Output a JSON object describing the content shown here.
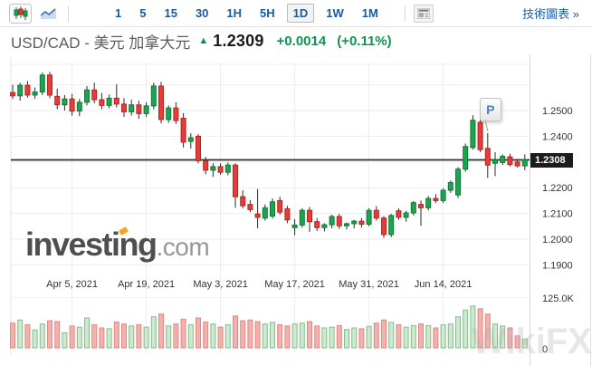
{
  "toolbar": {
    "chart_types": [
      {
        "name": "candlestick-chart",
        "selected": true
      },
      {
        "name": "area-line-chart",
        "selected": false
      }
    ],
    "timeframes": [
      "1",
      "5",
      "15",
      "30",
      "1H",
      "5H",
      "1D",
      "1W",
      "1M"
    ],
    "selected_timeframe": "1D",
    "news_panel_icon": "layout-panel",
    "technical_link": "技術圖表 »"
  },
  "header": {
    "pair": "USD/CAD",
    "separator": "-",
    "name": "美元 加拿大元",
    "direction_arrow": "▲",
    "price": "1.2309",
    "change": "+0.0014",
    "change_percent": "(+0.11%)"
  },
  "watermark": {
    "brand": "investing",
    "suffix": ".com",
    "corner_brand": "WikiFX"
  },
  "chart_data": {
    "type": "candlestick",
    "title": "USD/CAD daily candlesticks with volume",
    "legend_position": "none",
    "grid": true,
    "x_axis": {
      "tick_labels": [
        "Apr 5, 2021",
        "Apr 19, 2021",
        "May 3, 2021",
        "May 17, 2021",
        "May 31, 2021",
        "Jun 14, 2021"
      ],
      "tick_candle_indices": [
        8,
        18,
        28,
        38,
        48,
        58
      ]
    },
    "y_axis": {
      "side": "right",
      "ticks": [
        {
          "label": "1.2500",
          "value": 1.25
        },
        {
          "label": "1.2400",
          "value": 1.24
        },
        {
          "label": "1.2200",
          "value": 1.22
        },
        {
          "label": "1.2100",
          "value": 1.21
        },
        {
          "label": "1.2000",
          "value": 1.2
        },
        {
          "label": "1.1900",
          "value": 1.19
        }
      ],
      "gridline_values": [
        1.26,
        1.25,
        1.24,
        1.23,
        1.22,
        1.21,
        1.2,
        1.19
      ],
      "range": [
        1.187,
        1.268
      ]
    },
    "volume_axis": {
      "top_label": "125.0K",
      "top_value_k": 125,
      "zero_label": "0"
    },
    "price_line": {
      "value": 1.2308,
      "badge_label": "1.2308"
    },
    "marker": {
      "label": "P",
      "candle_index": 64
    },
    "colors": {
      "up": "#1fa44e",
      "up_border": "#0c7a37",
      "down": "#e43d3a",
      "down_border": "#b5241f",
      "wick": "#2b2b2b",
      "vol_up": "#cde9cf",
      "vol_up_border": "#85bd8a",
      "vol_down": "#f2b1ac",
      "vol_down_border": "#df8a84",
      "price_line": "#2f2f2f",
      "grid": "#ededed",
      "axis_text": "#333333",
      "green_text": "#089650",
      "toolbar_blue": "#1c5a9c"
    },
    "candles": [
      {
        "date": "Mar 24",
        "o": 1.257,
        "h": 1.26,
        "l": 1.2545,
        "c": 1.2557,
        "v": 62
      },
      {
        "date": "Mar 25",
        "o": 1.2557,
        "h": 1.2608,
        "l": 1.2538,
        "c": 1.2598,
        "v": 70
      },
      {
        "date": "Mar 26",
        "o": 1.2598,
        "h": 1.2615,
        "l": 1.255,
        "c": 1.256,
        "v": 58
      },
      {
        "date": "Mar 29",
        "o": 1.256,
        "h": 1.259,
        "l": 1.2545,
        "c": 1.2572,
        "v": 45
      },
      {
        "date": "Mar 30",
        "o": 1.2572,
        "h": 1.2648,
        "l": 1.256,
        "c": 1.2638,
        "v": 60
      },
      {
        "date": "Mar 31",
        "o": 1.2638,
        "h": 1.265,
        "l": 1.2548,
        "c": 1.256,
        "v": 68
      },
      {
        "date": "Apr 1",
        "o": 1.2555,
        "h": 1.2585,
        "l": 1.2505,
        "c": 1.2522,
        "v": 66
      },
      {
        "date": "Apr 2",
        "o": 1.2522,
        "h": 1.256,
        "l": 1.25,
        "c": 1.2545,
        "v": 38
      },
      {
        "date": "Apr 5",
        "o": 1.2545,
        "h": 1.2565,
        "l": 1.248,
        "c": 1.2498,
        "v": 55
      },
      {
        "date": "Apr 6",
        "o": 1.2498,
        "h": 1.2545,
        "l": 1.2478,
        "c": 1.2532,
        "v": 52
      },
      {
        "date": "Apr 7",
        "o": 1.2532,
        "h": 1.2595,
        "l": 1.252,
        "c": 1.258,
        "v": 75
      },
      {
        "date": "Apr 8",
        "o": 1.258,
        "h": 1.2608,
        "l": 1.2528,
        "c": 1.2542,
        "v": 58
      },
      {
        "date": "Apr 9",
        "o": 1.2542,
        "h": 1.2568,
        "l": 1.2505,
        "c": 1.252,
        "v": 50
      },
      {
        "date": "Apr 12",
        "o": 1.252,
        "h": 1.2562,
        "l": 1.2508,
        "c": 1.2548,
        "v": 48
      },
      {
        "date": "Apr 13",
        "o": 1.2548,
        "h": 1.2602,
        "l": 1.2512,
        "c": 1.2525,
        "v": 65
      },
      {
        "date": "Apr 14",
        "o": 1.2525,
        "h": 1.2548,
        "l": 1.2475,
        "c": 1.2495,
        "v": 60
      },
      {
        "date": "Apr 15",
        "o": 1.2495,
        "h": 1.2542,
        "l": 1.248,
        "c": 1.2522,
        "v": 55
      },
      {
        "date": "Apr 16",
        "o": 1.2522,
        "h": 1.2538,
        "l": 1.2468,
        "c": 1.2488,
        "v": 58
      },
      {
        "date": "Apr 19",
        "o": 1.2488,
        "h": 1.2532,
        "l": 1.2475,
        "c": 1.2518,
        "v": 52
      },
      {
        "date": "Apr 20",
        "o": 1.2518,
        "h": 1.2608,
        "l": 1.2505,
        "c": 1.2595,
        "v": 78
      },
      {
        "date": "Apr 21",
        "o": 1.2595,
        "h": 1.2612,
        "l": 1.245,
        "c": 1.2465,
        "v": 85
      },
      {
        "date": "Apr 22",
        "o": 1.2465,
        "h": 1.252,
        "l": 1.2452,
        "c": 1.251,
        "v": 55
      },
      {
        "date": "Apr 23",
        "o": 1.251,
        "h": 1.2532,
        "l": 1.2448,
        "c": 1.2461,
        "v": 60
      },
      {
        "date": "Apr 26",
        "o": 1.247,
        "h": 1.249,
        "l": 1.2356,
        "c": 1.2377,
        "v": 72
      },
      {
        "date": "Apr 27",
        "o": 1.238,
        "h": 1.2412,
        "l": 1.2352,
        "c": 1.2394,
        "v": 58
      },
      {
        "date": "Apr 28",
        "o": 1.24,
        "h": 1.2408,
        "l": 1.2295,
        "c": 1.2305,
        "v": 75
      },
      {
        "date": "Apr 29",
        "o": 1.2305,
        "h": 1.232,
        "l": 1.2252,
        "c": 1.2268,
        "v": 65
      },
      {
        "date": "Apr 30",
        "o": 1.2268,
        "h": 1.2295,
        "l": 1.2242,
        "c": 1.2282,
        "v": 60
      },
      {
        "date": "May 3",
        "o": 1.2282,
        "h": 1.2295,
        "l": 1.225,
        "c": 1.226,
        "v": 52
      },
      {
        "date": "May 4",
        "o": 1.226,
        "h": 1.2298,
        "l": 1.2248,
        "c": 1.2288,
        "v": 58
      },
      {
        "date": "May 5",
        "o": 1.2288,
        "h": 1.2295,
        "l": 1.2122,
        "c": 1.2165,
        "v": 80
      },
      {
        "date": "May 6",
        "o": 1.2165,
        "h": 1.219,
        "l": 1.212,
        "c": 1.213,
        "v": 68
      },
      {
        "date": "May 7",
        "o": 1.2135,
        "h": 1.2152,
        "l": 1.2105,
        "c": 1.2115,
        "v": 70
      },
      {
        "date": "May 10",
        "o": 1.2098,
        "h": 1.2195,
        "l": 1.2042,
        "c": 1.2085,
        "v": 66
      },
      {
        "date": "May 11",
        "o": 1.2082,
        "h": 1.2135,
        "l": 1.2072,
        "c": 1.2122,
        "v": 60
      },
      {
        "date": "May 12",
        "o": 1.209,
        "h": 1.2158,
        "l": 1.208,
        "c": 1.2145,
        "v": 64
      },
      {
        "date": "May 13",
        "o": 1.215,
        "h": 1.2165,
        "l": 1.2095,
        "c": 1.2105,
        "v": 58
      },
      {
        "date": "May 14",
        "o": 1.2118,
        "h": 1.213,
        "l": 1.2062,
        "c": 1.2075,
        "v": 55
      },
      {
        "date": "May 17",
        "o": 1.2045,
        "h": 1.2078,
        "l": 1.2015,
        "c": 1.2055,
        "v": 60
      },
      {
        "date": "May 18",
        "o": 1.2055,
        "h": 1.212,
        "l": 1.2045,
        "c": 1.2112,
        "v": 62
      },
      {
        "date": "May 19",
        "o": 1.2112,
        "h": 1.2125,
        "l": 1.2028,
        "c": 1.2068,
        "v": 66
      },
      {
        "date": "May 20",
        "o": 1.2068,
        "h": 1.2082,
        "l": 1.2032,
        "c": 1.2045,
        "v": 55
      },
      {
        "date": "May 21",
        "o": 1.2045,
        "h": 1.2062,
        "l": 1.203,
        "c": 1.2056,
        "v": 50
      },
      {
        "date": "May 24",
        "o": 1.2056,
        "h": 1.2095,
        "l": 1.2042,
        "c": 1.2088,
        "v": 52
      },
      {
        "date": "May 25",
        "o": 1.2088,
        "h": 1.2098,
        "l": 1.204,
        "c": 1.2052,
        "v": 56
      },
      {
        "date": "May 26",
        "o": 1.2052,
        "h": 1.2065,
        "l": 1.2038,
        "c": 1.206,
        "v": 46
      },
      {
        "date": "May 27",
        "o": 1.206,
        "h": 1.2075,
        "l": 1.2042,
        "c": 1.207,
        "v": 50
      },
      {
        "date": "May 28",
        "o": 1.207,
        "h": 1.2082,
        "l": 1.2045,
        "c": 1.2058,
        "v": 48
      },
      {
        "date": "May 31",
        "o": 1.2058,
        "h": 1.212,
        "l": 1.205,
        "c": 1.2112,
        "v": 54
      },
      {
        "date": "Jun 1",
        "o": 1.2112,
        "h": 1.2128,
        "l": 1.2072,
        "c": 1.2082,
        "v": 62
      },
      {
        "date": "Jun 2",
        "o": 1.2082,
        "h": 1.209,
        "l": 1.2005,
        "c": 1.2018,
        "v": 70
      },
      {
        "date": "Jun 3",
        "o": 1.2018,
        "h": 1.2098,
        "l": 1.2008,
        "c": 1.2092,
        "v": 64
      },
      {
        "date": "Jun 4",
        "o": 1.211,
        "h": 1.212,
        "l": 1.2075,
        "c": 1.2085,
        "v": 58
      },
      {
        "date": "Jun 7",
        "o": 1.2085,
        "h": 1.211,
        "l": 1.2068,
        "c": 1.2102,
        "v": 52
      },
      {
        "date": "Jun 8",
        "o": 1.2102,
        "h": 1.2148,
        "l": 1.2092,
        "c": 1.2142,
        "v": 56
      },
      {
        "date": "Jun 9",
        "o": 1.2135,
        "h": 1.215,
        "l": 1.2052,
        "c": 1.2122,
        "v": 60
      },
      {
        "date": "Jun 10",
        "o": 1.2122,
        "h": 1.2168,
        "l": 1.2112,
        "c": 1.2158,
        "v": 56
      },
      {
        "date": "Jun 11",
        "o": 1.2158,
        "h": 1.2175,
        "l": 1.214,
        "c": 1.215,
        "v": 50
      },
      {
        "date": "Jun 14",
        "o": 1.215,
        "h": 1.2198,
        "l": 1.214,
        "c": 1.219,
        "v": 58
      },
      {
        "date": "Jun 15",
        "o": 1.219,
        "h": 1.2228,
        "l": 1.218,
        "c": 1.222,
        "v": 60
      },
      {
        "date": "Jun 16",
        "o": 1.2172,
        "h": 1.228,
        "l": 1.216,
        "c": 1.2272,
        "v": 78
      },
      {
        "date": "Jun 17",
        "o": 1.2272,
        "h": 1.2372,
        "l": 1.2262,
        "c": 1.236,
        "v": 95
      },
      {
        "date": "Jun 18",
        "o": 1.2356,
        "h": 1.2482,
        "l": 1.2348,
        "c": 1.2462,
        "v": 105
      },
      {
        "date": "Jun 21",
        "o": 1.2454,
        "h": 1.2478,
        "l": 1.2338,
        "c": 1.2348,
        "v": 98
      },
      {
        "date": "Jun 22",
        "o": 1.2353,
        "h": 1.2412,
        "l": 1.2238,
        "c": 1.2288,
        "v": 85
      },
      {
        "date": "Jun 23",
        "o": 1.2295,
        "h": 1.2338,
        "l": 1.2245,
        "c": 1.2308,
        "v": 60
      },
      {
        "date": "Jun 24",
        "o": 1.2298,
        "h": 1.233,
        "l": 1.2288,
        "c": 1.2322,
        "v": 55
      },
      {
        "date": "Jun 25",
        "o": 1.232,
        "h": 1.2332,
        "l": 1.2282,
        "c": 1.229,
        "v": 50
      },
      {
        "date": "Jun 28",
        "o": 1.23,
        "h": 1.231,
        "l": 1.2278,
        "c": 1.2285,
        "v": 30
      },
      {
        "date": "Jun 29",
        "o": 1.2285,
        "h": 1.233,
        "l": 1.2268,
        "c": 1.2309,
        "v": 22
      }
    ]
  }
}
